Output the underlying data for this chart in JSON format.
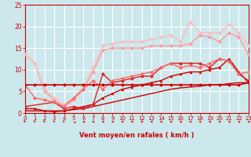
{
  "xlabel": "Vent moyen/en rafales ( km/h )",
  "bg_color": "#cce8ec",
  "grid_color": "#b0d8dc",
  "axis_color": "#cc0000",
  "xlim": [
    0,
    23
  ],
  "ylim": [
    0,
    25
  ],
  "xticks": [
    0,
    1,
    2,
    3,
    4,
    5,
    6,
    7,
    8,
    9,
    10,
    11,
    12,
    13,
    14,
    15,
    16,
    17,
    18,
    19,
    20,
    21,
    22,
    23
  ],
  "yticks": [
    0,
    5,
    10,
    15,
    20,
    25
  ],
  "series": [
    {
      "x": [
        0,
        1,
        2,
        3,
        4,
        5,
        6,
        7,
        8,
        9,
        10,
        11,
        12,
        13,
        14,
        15,
        16,
        17,
        18,
        19,
        20,
        21,
        22,
        23
      ],
      "y": [
        6.5,
        6.5,
        6.5,
        6.5,
        6.5,
        6.5,
        6.5,
        6.5,
        6.5,
        6.5,
        6.5,
        6.5,
        6.5,
        6.5,
        6.5,
        6.5,
        6.5,
        6.5,
        6.5,
        6.5,
        6.5,
        6.5,
        6.5,
        7.0
      ],
      "color": "#cc0000",
      "lw": 1.2,
      "marker": "D",
      "ms": 2.0,
      "zorder": 5
    },
    {
      "x": [
        0,
        1,
        2,
        3,
        4,
        5,
        6,
        7,
        8,
        9,
        10,
        11,
        12,
        13,
        14,
        15,
        16,
        17,
        18,
        19,
        20,
        21,
        22,
        23
      ],
      "y": [
        0.5,
        0.5,
        0.5,
        0.5,
        0.5,
        0.8,
        1.0,
        1.5,
        2.0,
        2.5,
        3.0,
        3.5,
        4.0,
        4.5,
        5.0,
        5.5,
        5.8,
        6.0,
        6.2,
        6.5,
        6.5,
        6.8,
        7.0,
        7.0
      ],
      "color": "#cc0000",
      "lw": 1.0,
      "marker": null,
      "ms": 0,
      "zorder": 4
    },
    {
      "x": [
        0,
        1,
        2,
        3,
        4,
        5,
        6,
        7,
        8,
        9,
        10,
        11,
        12,
        13,
        14,
        15,
        16,
        17,
        18,
        19,
        20,
        21,
        22,
        23
      ],
      "y": [
        1.0,
        1.0,
        0.5,
        0.3,
        0.5,
        1.0,
        1.5,
        2.0,
        3.5,
        4.5,
        5.5,
        6.0,
        6.5,
        7.0,
        7.5,
        8.5,
        9.0,
        9.5,
        9.5,
        10.0,
        10.5,
        12.5,
        9.5,
        7.0
      ],
      "color": "#cc0000",
      "lw": 1.0,
      "marker": "^",
      "ms": 2.0,
      "zorder": 4
    },
    {
      "x": [
        0,
        3,
        4,
        5,
        6,
        7,
        8,
        9,
        10,
        11,
        12,
        13,
        14,
        15,
        16,
        17,
        18,
        19,
        20,
        21,
        22,
        23
      ],
      "y": [
        1.5,
        2.5,
        1.0,
        1.5,
        1.0,
        2.0,
        9.0,
        7.0,
        7.5,
        8.0,
        8.5,
        8.5,
        10.5,
        11.5,
        11.5,
        11.5,
        11.5,
        10.5,
        12.5,
        12.0,
        9.0,
        7.5
      ],
      "color": "#dd2222",
      "lw": 1.0,
      "marker": "D",
      "ms": 2.0,
      "zorder": 4
    },
    {
      "x": [
        0,
        1,
        2,
        3,
        4,
        5,
        6,
        7,
        8,
        9,
        10,
        11,
        12,
        13,
        14,
        15,
        16,
        17,
        18,
        19,
        20,
        21,
        22,
        23
      ],
      "y": [
        13.5,
        11.5,
        5.0,
        3.0,
        1.5,
        3.0,
        5.5,
        9.5,
        14.5,
        15.0,
        15.0,
        15.0,
        15.0,
        15.5,
        15.5,
        15.5,
        15.5,
        16.0,
        18.0,
        17.5,
        16.5,
        18.5,
        17.5,
        13.5
      ],
      "color": "#ff9999",
      "lw": 1.0,
      "marker": "D",
      "ms": 2.0,
      "zorder": 3
    },
    {
      "x": [
        0,
        1,
        2,
        3,
        4,
        5,
        6,
        7,
        8,
        9,
        10,
        11,
        12,
        13,
        14,
        15,
        16,
        17,
        18,
        19,
        20,
        21,
        22,
        23
      ],
      "y": [
        13.5,
        11.5,
        5.5,
        3.5,
        2.0,
        3.5,
        6.0,
        10.5,
        15.5,
        16.0,
        16.5,
        16.5,
        16.5,
        17.0,
        17.5,
        18.0,
        16.5,
        21.0,
        18.5,
        18.5,
        18.5,
        20.5,
        18.5,
        15.5
      ],
      "color": "#ffbbbb",
      "lw": 1.0,
      "marker": "D",
      "ms": 2.0,
      "zorder": 3
    },
    {
      "x": [
        0,
        1,
        2,
        3,
        4,
        5,
        6,
        7,
        8,
        9,
        10,
        11,
        12,
        13,
        14,
        15,
        16,
        17,
        18,
        19,
        20,
        21,
        22,
        23
      ],
      "y": [
        6.5,
        3.5,
        3.0,
        2.5,
        1.5,
        3.5,
        5.5,
        7.5,
        5.5,
        7.5,
        8.0,
        8.5,
        9.0,
        9.5,
        10.5,
        11.5,
        10.5,
        11.0,
        10.5,
        11.5,
        12.5,
        12.0,
        9.0,
        9.5
      ],
      "color": "#ff6666",
      "lw": 1.0,
      "marker": "D",
      "ms": 2.0,
      "zorder": 4
    }
  ],
  "arrow_angles_deg": [
    210,
    205,
    200,
    195,
    200,
    215,
    250,
    265,
    270,
    270,
    275,
    275,
    275,
    275,
    270,
    265,
    265,
    270,
    265,
    262,
    258,
    252,
    248,
    245
  ]
}
